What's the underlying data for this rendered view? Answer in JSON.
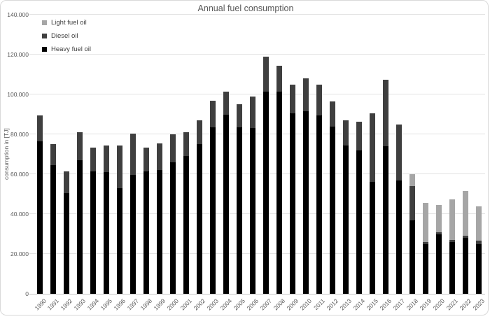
{
  "chart_data": {
    "type": "bar",
    "stacked": true,
    "title": "Annual fuel consumption",
    "xlabel": "",
    "ylabel": "consumption in [TJ]",
    "ylim": [
      0,
      140000
    ],
    "ytick_step": 20000,
    "ytick_labels": [
      "0",
      "20.000",
      "40.000",
      "60.000",
      "80.000",
      "100.000",
      "120.000",
      "140.000"
    ],
    "grid": true,
    "legend_position": "top-left",
    "legend_order": [
      "Light fuel oil",
      "Diesel oil",
      "Heavy fuel oil"
    ],
    "categories": [
      "1990",
      "1991",
      "1992",
      "1993",
      "1994",
      "1995",
      "1996",
      "1997",
      "1998",
      "1999",
      "2000",
      "2001",
      "2002",
      "2003",
      "2004",
      "2005",
      "2006",
      "2007",
      "2008",
      "2009",
      "2010",
      "2011",
      "2012",
      "2013",
      "2014",
      "2015",
      "2016",
      "2017",
      "2018",
      "2019",
      "2020",
      "2021",
      "2022",
      "2023"
    ],
    "series": [
      {
        "name": "Heavy fuel oil",
        "color": "#000000",
        "values": [
          76500,
          64500,
          50500,
          67000,
          61500,
          61000,
          53000,
          59500,
          61500,
          62000,
          66000,
          69000,
          75000,
          83500,
          90000,
          83500,
          83000,
          101500,
          101500,
          90500,
          91500,
          89500,
          84000,
          74500,
          72000,
          56000,
          74000,
          57000,
          37000,
          25000,
          30000,
          26000,
          28000,
          25000
        ]
      },
      {
        "name": "Diesel oil",
        "color": "#3f3f3f",
        "values": [
          13000,
          10500,
          11000,
          14000,
          12000,
          13500,
          21500,
          21000,
          12000,
          13500,
          14000,
          12000,
          12000,
          13500,
          11500,
          11500,
          16000,
          17500,
          13000,
          14500,
          16500,
          15500,
          12500,
          12500,
          14500,
          34500,
          33500,
          28000,
          17000,
          1000,
          1000,
          1000,
          1000,
          1500
        ]
      },
      {
        "name": "Light fuel oil",
        "color": "#a6a6a6",
        "values": [
          0,
          0,
          0,
          0,
          0,
          0,
          0,
          0,
          0,
          0,
          0,
          0,
          0,
          0,
          0,
          0,
          0,
          0,
          0,
          0,
          0,
          0,
          0,
          0,
          0,
          0,
          0,
          0,
          6000,
          19500,
          13500,
          20500,
          22500,
          17500
        ]
      }
    ]
  },
  "style": {
    "title_color": "#595959",
    "axis_text_color": "#595959",
    "gridline_color": "#e2e2e2",
    "axis_line_color": "#c8c8c8",
    "frame_border_color": "#d9d9d9",
    "legend_text_color": "#404040",
    "background": "#ffffff"
  }
}
